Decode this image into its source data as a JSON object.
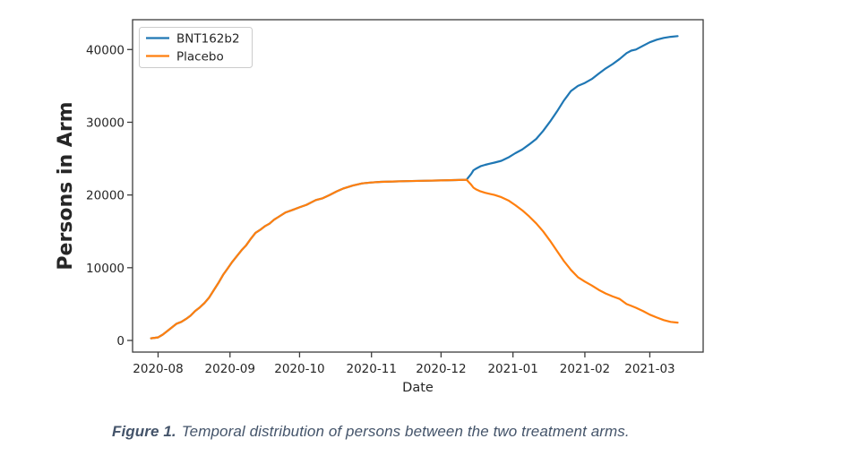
{
  "caption": {
    "label": "Figure 1.",
    "text": "Temporal distribution of persons between the two treatment arms.",
    "color": "#44546A"
  },
  "chart_data": {
    "type": "line",
    "title": "",
    "xlabel": "Date",
    "ylabel": "Persons in Arm",
    "grid": false,
    "legend": {
      "position": "upper-left"
    },
    "x_domain": [
      "2020-07-21",
      "2021-03-24"
    ],
    "ylim": [
      -1600,
      44100
    ],
    "x_tick_labels": [
      "2020-08",
      "2020-09",
      "2020-10",
      "2020-11",
      "2020-12",
      "2021-01",
      "2021-02",
      "2021-03"
    ],
    "y_ticks": [
      0,
      10000,
      20000,
      30000,
      40000
    ],
    "axis_color": "#3c3c3c",
    "series": [
      {
        "name": "BNT162b2",
        "color": "#1f77b4",
        "points": [
          [
            "2020-07-29",
            300
          ],
          [
            "2020-08-01",
            420
          ],
          [
            "2020-08-03",
            800
          ],
          [
            "2020-08-05",
            1300
          ],
          [
            "2020-08-07",
            1800
          ],
          [
            "2020-08-09",
            2300
          ],
          [
            "2020-08-11",
            2550
          ],
          [
            "2020-08-13",
            2950
          ],
          [
            "2020-08-15",
            3400
          ],
          [
            "2020-08-17",
            4050
          ],
          [
            "2020-08-19",
            4550
          ],
          [
            "2020-08-21",
            5150
          ],
          [
            "2020-08-23",
            5900
          ],
          [
            "2020-08-25",
            6900
          ],
          [
            "2020-08-27",
            7900
          ],
          [
            "2020-08-29",
            9000
          ],
          [
            "2020-08-31",
            9900
          ],
          [
            "2020-09-02",
            10800
          ],
          [
            "2020-09-04",
            11600
          ],
          [
            "2020-09-06",
            12400
          ],
          [
            "2020-09-08",
            13100
          ],
          [
            "2020-09-10",
            14000
          ],
          [
            "2020-09-12",
            14800
          ],
          [
            "2020-09-14",
            15200
          ],
          [
            "2020-09-16",
            15700
          ],
          [
            "2020-09-18",
            16050
          ],
          [
            "2020-09-20",
            16600
          ],
          [
            "2020-09-22",
            17000
          ],
          [
            "2020-09-25",
            17600
          ],
          [
            "2020-09-28",
            17950
          ],
          [
            "2020-10-01",
            18300
          ],
          [
            "2020-10-04",
            18650
          ],
          [
            "2020-10-08",
            19300
          ],
          [
            "2020-10-11",
            19550
          ],
          [
            "2020-10-14",
            20000
          ],
          [
            "2020-10-17",
            20500
          ],
          [
            "2020-10-20",
            20900
          ],
          [
            "2020-10-24",
            21300
          ],
          [
            "2020-10-28",
            21600
          ],
          [
            "2020-11-01",
            21720
          ],
          [
            "2020-11-05",
            21800
          ],
          [
            "2020-11-10",
            21850
          ],
          [
            "2020-11-16",
            21900
          ],
          [
            "2020-11-23",
            21950
          ],
          [
            "2020-12-01",
            22000
          ],
          [
            "2020-12-07",
            22050
          ],
          [
            "2020-12-12",
            22100
          ],
          [
            "2020-12-14",
            22900
          ],
          [
            "2020-12-15",
            23400
          ],
          [
            "2020-12-16",
            23600
          ],
          [
            "2020-12-18",
            23950
          ],
          [
            "2020-12-20",
            24150
          ],
          [
            "2020-12-22",
            24300
          ],
          [
            "2020-12-24",
            24450
          ],
          [
            "2020-12-27",
            24700
          ],
          [
            "2020-12-30",
            25150
          ],
          [
            "2021-01-02",
            25750
          ],
          [
            "2021-01-05",
            26250
          ],
          [
            "2021-01-08",
            26950
          ],
          [
            "2021-01-11",
            27700
          ],
          [
            "2021-01-14",
            28800
          ],
          [
            "2021-01-17",
            30100
          ],
          [
            "2021-01-20",
            31500
          ],
          [
            "2021-01-23",
            33000
          ],
          [
            "2021-01-26",
            34300
          ],
          [
            "2021-01-29",
            35000
          ],
          [
            "2021-02-01",
            35400
          ],
          [
            "2021-02-04",
            35950
          ],
          [
            "2021-02-07",
            36700
          ],
          [
            "2021-02-10",
            37400
          ],
          [
            "2021-02-13",
            38000
          ],
          [
            "2021-02-16",
            38700
          ],
          [
            "2021-02-19",
            39500
          ],
          [
            "2021-02-21",
            39850
          ],
          [
            "2021-02-23",
            40000
          ],
          [
            "2021-02-26",
            40500
          ],
          [
            "2021-03-01",
            41000
          ],
          [
            "2021-03-04",
            41350
          ],
          [
            "2021-03-07",
            41600
          ],
          [
            "2021-03-10",
            41750
          ],
          [
            "2021-03-13",
            41850
          ]
        ]
      },
      {
        "name": "Placebo",
        "color": "#ff7f0e",
        "points": [
          [
            "2020-07-29",
            300
          ],
          [
            "2020-08-01",
            420
          ],
          [
            "2020-08-03",
            800
          ],
          [
            "2020-08-05",
            1300
          ],
          [
            "2020-08-07",
            1800
          ],
          [
            "2020-08-09",
            2300
          ],
          [
            "2020-08-11",
            2550
          ],
          [
            "2020-08-13",
            2950
          ],
          [
            "2020-08-15",
            3400
          ],
          [
            "2020-08-17",
            4050
          ],
          [
            "2020-08-19",
            4550
          ],
          [
            "2020-08-21",
            5150
          ],
          [
            "2020-08-23",
            5900
          ],
          [
            "2020-08-25",
            6900
          ],
          [
            "2020-08-27",
            7900
          ],
          [
            "2020-08-29",
            9000
          ],
          [
            "2020-08-31",
            9900
          ],
          [
            "2020-09-02",
            10800
          ],
          [
            "2020-09-04",
            11600
          ],
          [
            "2020-09-06",
            12400
          ],
          [
            "2020-09-08",
            13100
          ],
          [
            "2020-09-10",
            14000
          ],
          [
            "2020-09-12",
            14800
          ],
          [
            "2020-09-14",
            15200
          ],
          [
            "2020-09-16",
            15700
          ],
          [
            "2020-09-18",
            16050
          ],
          [
            "2020-09-20",
            16600
          ],
          [
            "2020-09-22",
            17000
          ],
          [
            "2020-09-25",
            17600
          ],
          [
            "2020-09-28",
            17950
          ],
          [
            "2020-10-01",
            18300
          ],
          [
            "2020-10-04",
            18650
          ],
          [
            "2020-10-08",
            19300
          ],
          [
            "2020-10-11",
            19550
          ],
          [
            "2020-10-14",
            20000
          ],
          [
            "2020-10-17",
            20500
          ],
          [
            "2020-10-20",
            20900
          ],
          [
            "2020-10-24",
            21300
          ],
          [
            "2020-10-28",
            21600
          ],
          [
            "2020-11-01",
            21720
          ],
          [
            "2020-11-05",
            21800
          ],
          [
            "2020-11-10",
            21850
          ],
          [
            "2020-11-16",
            21900
          ],
          [
            "2020-11-23",
            21950
          ],
          [
            "2020-12-01",
            22000
          ],
          [
            "2020-12-07",
            22050
          ],
          [
            "2020-12-12",
            22100
          ],
          [
            "2020-12-14",
            21400
          ],
          [
            "2020-12-15",
            21000
          ],
          [
            "2020-12-16",
            20800
          ],
          [
            "2020-12-18",
            20500
          ],
          [
            "2020-12-20",
            20300
          ],
          [
            "2020-12-22",
            20150
          ],
          [
            "2020-12-24",
            20000
          ],
          [
            "2020-12-27",
            19700
          ],
          [
            "2020-12-30",
            19250
          ],
          [
            "2021-01-02",
            18600
          ],
          [
            "2021-01-05",
            17900
          ],
          [
            "2021-01-08",
            17050
          ],
          [
            "2021-01-11",
            16100
          ],
          [
            "2021-01-14",
            15000
          ],
          [
            "2021-01-17",
            13700
          ],
          [
            "2021-01-20",
            12300
          ],
          [
            "2021-01-23",
            10900
          ],
          [
            "2021-01-26",
            9700
          ],
          [
            "2021-01-29",
            8700
          ],
          [
            "2021-02-01",
            8100
          ],
          [
            "2021-02-04",
            7550
          ],
          [
            "2021-02-07",
            6950
          ],
          [
            "2021-02-10",
            6450
          ],
          [
            "2021-02-13",
            6050
          ],
          [
            "2021-02-16",
            5700
          ],
          [
            "2021-02-19",
            5000
          ],
          [
            "2021-02-21",
            4750
          ],
          [
            "2021-02-23",
            4500
          ],
          [
            "2021-02-26",
            4050
          ],
          [
            "2021-03-01",
            3550
          ],
          [
            "2021-03-04",
            3150
          ],
          [
            "2021-03-07",
            2800
          ],
          [
            "2021-03-10",
            2550
          ],
          [
            "2021-03-13",
            2450
          ]
        ]
      }
    ]
  }
}
